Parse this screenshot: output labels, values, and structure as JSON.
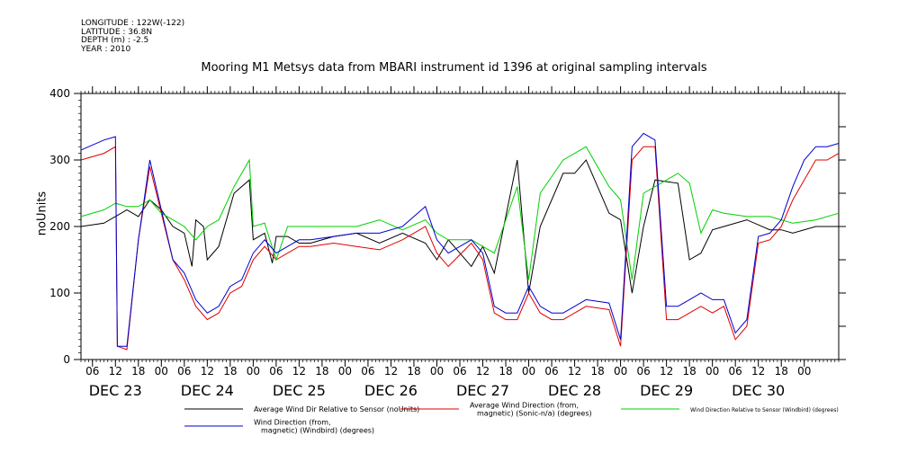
{
  "header": {
    "longitude": "LONGITUDE : 122W(-122)",
    "latitude": "LATITUDE : 36.8N",
    "depth": "DEPTH (m) : -2.5",
    "year": "YEAR : 2010"
  },
  "chart_data": {
    "type": "line",
    "title": "Mooring M1 Metsys data from MBARI instrument id 1396 at original sampling intervals",
    "ylabel": "noUnits",
    "xlabel": "",
    "ylim": [
      0,
      400
    ],
    "yticks": [
      0,
      100,
      200,
      300,
      400
    ],
    "xlim_hours": [
      0,
      198
    ],
    "hour_ticks": [
      "06",
      "12",
      "18",
      "00",
      "06",
      "12",
      "18",
      "00",
      "06",
      "12",
      "18",
      "00",
      "06",
      "12",
      "18",
      "00",
      "06",
      "12",
      "18",
      "00",
      "06",
      "12",
      "18",
      "00",
      "06",
      "12",
      "18",
      "00",
      "06",
      "12",
      "18",
      "00"
    ],
    "day_labels": [
      "DEC 23",
      "DEC 24",
      "DEC 25",
      "DEC 26",
      "DEC 27",
      "DEC 28",
      "DEC 29",
      "DEC 30"
    ],
    "colors": {
      "black": "#000000",
      "red": "#e00000",
      "green": "#00d000",
      "blue": "#0000d0"
    },
    "series": [
      {
        "name": "Average Wind Dir Relative to Sensor (noUnits)",
        "color": "#000000",
        "x": [
          0,
          6,
          9,
          12,
          15,
          18,
          21,
          24,
          27,
          29,
          30,
          32,
          33,
          36,
          40,
          44,
          45,
          48,
          50,
          51,
          54,
          57,
          60,
          66,
          72,
          78,
          84,
          90,
          93,
          96,
          102,
          105,
          108,
          114,
          117,
          120,
          126,
          129,
          132,
          138,
          141,
          144,
          147,
          150,
          156,
          159,
          162,
          165,
          168,
          174,
          180,
          183,
          186,
          192,
          198
        ],
        "y": [
          200,
          205,
          215,
          225,
          215,
          240,
          225,
          200,
          190,
          140,
          210,
          200,
          150,
          170,
          250,
          270,
          180,
          190,
          145,
          185,
          185,
          175,
          175,
          185,
          190,
          175,
          190,
          175,
          150,
          180,
          140,
          170,
          130,
          300,
          100,
          200,
          280,
          280,
          300,
          220,
          210,
          100,
          200,
          270,
          265,
          150,
          160,
          195,
          200,
          210,
          195,
          195,
          190,
          200,
          200
        ]
      },
      {
        "name": "Average Wind Direction (from, magnetic) (Sonic-n/a) (degrees)",
        "color": "#e00000",
        "x": [
          0,
          6,
          9,
          9.5,
          12,
          15,
          18,
          21,
          24,
          27,
          30,
          33,
          36,
          39,
          42,
          45,
          48,
          51,
          54,
          57,
          60,
          66,
          72,
          78,
          84,
          90,
          93,
          96,
          102,
          105,
          108,
          111,
          114,
          117,
          120,
          123,
          126,
          129,
          132,
          138,
          141,
          144,
          147,
          150,
          153,
          156,
          159,
          162,
          165,
          168,
          171,
          174,
          177,
          180,
          183,
          186,
          189,
          192,
          195,
          198
        ],
        "y": [
          300,
          310,
          320,
          20,
          15,
          180,
          290,
          220,
          150,
          120,
          80,
          60,
          70,
          100,
          110,
          150,
          170,
          150,
          160,
          170,
          170,
          175,
          170,
          165,
          180,
          200,
          160,
          140,
          175,
          150,
          70,
          60,
          60,
          100,
          70,
          60,
          60,
          70,
          80,
          75,
          20,
          300,
          320,
          320,
          60,
          60,
          70,
          80,
          70,
          80,
          30,
          50,
          175,
          180,
          200,
          240,
          270,
          300,
          300,
          310
        ]
      },
      {
        "name": "Wind Direction Relative to Sensor (Windbird) (degrees)",
        "color": "#00d000",
        "x": [
          0,
          6,
          9,
          12,
          15,
          18,
          21,
          24,
          27,
          30,
          33,
          36,
          40,
          44,
          45,
          48,
          51,
          54,
          57,
          60,
          66,
          72,
          78,
          84,
          90,
          93,
          96,
          102,
          105,
          108,
          114,
          117,
          120,
          126,
          129,
          132,
          138,
          141,
          144,
          147,
          150,
          156,
          159,
          162,
          165,
          168,
          174,
          180,
          183,
          186,
          192,
          198
        ],
        "y": [
          215,
          225,
          235,
          230,
          230,
          240,
          220,
          210,
          200,
          180,
          200,
          210,
          260,
          300,
          200,
          205,
          150,
          200,
          200,
          200,
          200,
          200,
          210,
          195,
          210,
          190,
          180,
          180,
          170,
          160,
          260,
          120,
          250,
          300,
          310,
          320,
          260,
          240,
          120,
          250,
          260,
          280,
          265,
          190,
          225,
          220,
          215,
          215,
          210,
          205,
          210,
          220
        ]
      },
      {
        "name": "Wind Direction (from, magnetic) (Windbird) (degrees)",
        "color": "#0000d0",
        "x": [
          0,
          6,
          9,
          9.5,
          12,
          15,
          18,
          21,
          24,
          27,
          30,
          33,
          36,
          39,
          42,
          45,
          48,
          51,
          54,
          57,
          60,
          66,
          72,
          78,
          84,
          90,
          93,
          96,
          102,
          105,
          108,
          111,
          114,
          117,
          120,
          123,
          126,
          129,
          132,
          138,
          141,
          144,
          147,
          150,
          153,
          156,
          159,
          162,
          165,
          168,
          171,
          174,
          177,
          180,
          183,
          186,
          189,
          192,
          195,
          198
        ],
        "y": [
          315,
          330,
          335,
          20,
          20,
          180,
          300,
          225,
          150,
          130,
          90,
          70,
          80,
          110,
          120,
          160,
          180,
          160,
          170,
          180,
          180,
          185,
          190,
          190,
          200,
          230,
          180,
          160,
          180,
          160,
          80,
          70,
          70,
          110,
          80,
          70,
          70,
          80,
          90,
          85,
          30,
          320,
          340,
          330,
          80,
          80,
          90,
          100,
          90,
          90,
          40,
          60,
          185,
          190,
          210,
          260,
          300,
          320,
          320,
          325
        ]
      }
    ],
    "legend": [
      "Average Wind Dir Relative to Sensor (noUnits)",
      "Average Wind Direction (from,|magnetic) (Sonic-n/a) (degrees)",
      "Wind Direction Relative to Sensor (Windbird) (degrees)",
      "Wind Direction (from,|magnetic) (Windbird) (degrees)"
    ],
    "legend_position": "bottom"
  }
}
